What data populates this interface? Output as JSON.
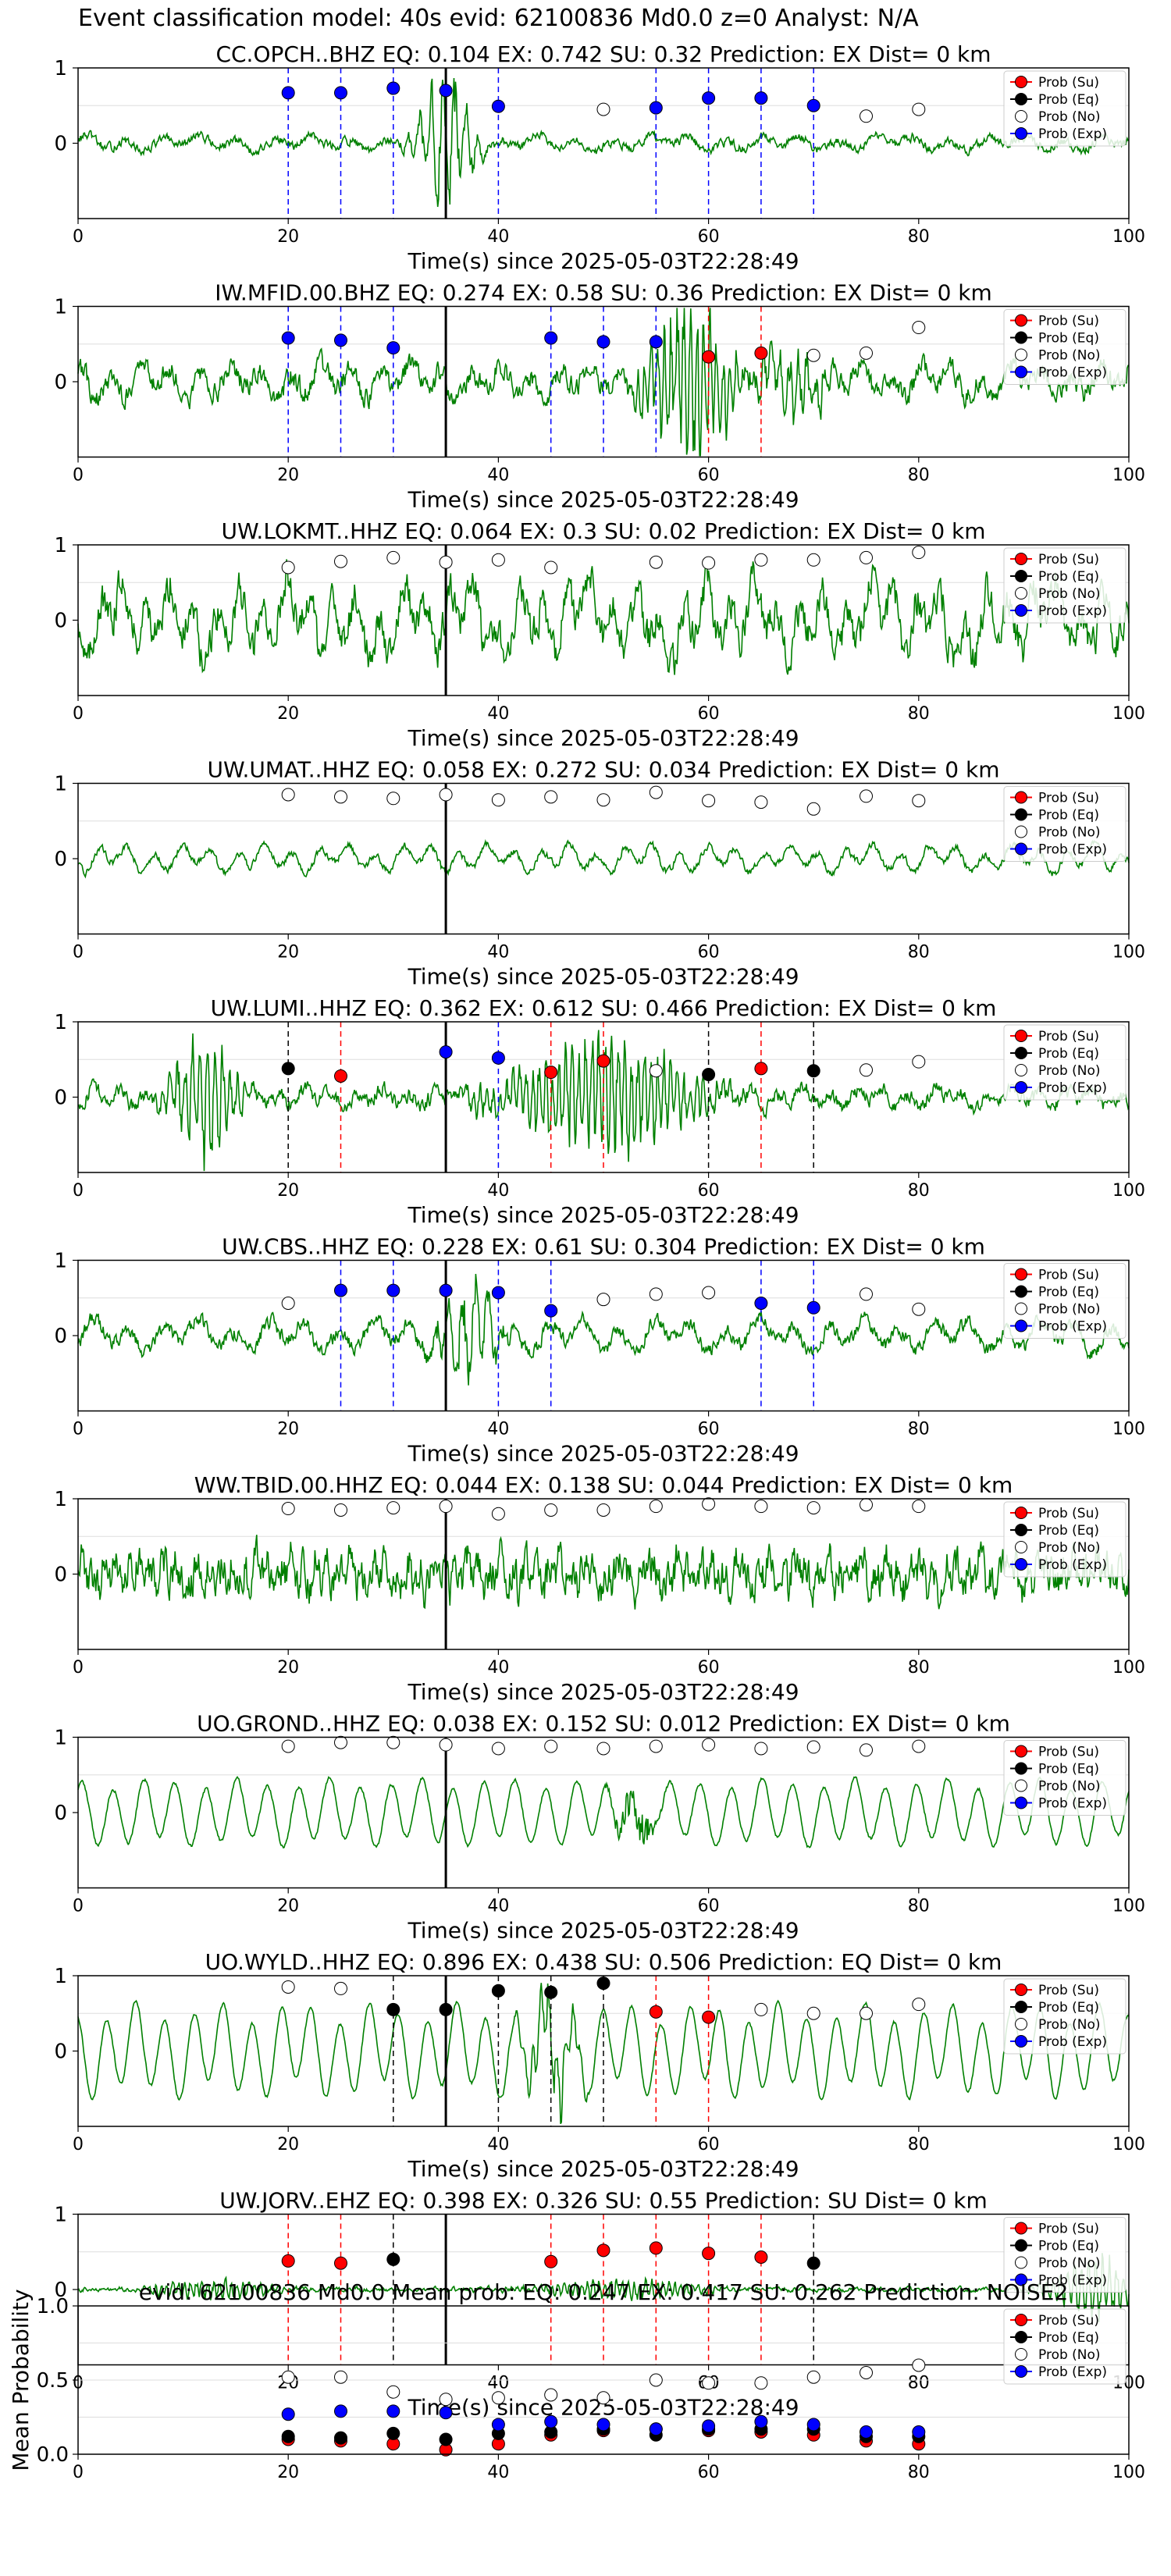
{
  "suptitle": "Event classification model: 40s evid: 62100836 Md0.0 z=0 Analyst: N/A",
  "colors": {
    "waveform": "#008000",
    "su": "#ff0000",
    "eq": "#000000",
    "no": "#ffffff",
    "exp": "#0000ff",
    "grid": "#dddddd"
  },
  "legend": [
    "Prob (Su)",
    "Prob (Eq)",
    "Prob (No)",
    "Prob (Exp)"
  ],
  "xlabel": "Time(s) since 2025-05-03T22:28:49",
  "x_ticks": [
    "0",
    "20",
    "40",
    "60",
    "80",
    "100"
  ],
  "y_ticks": [
    "1",
    "0"
  ],
  "chart_data": [
    {
      "type": "line",
      "title": "CC.OPCH..BHZ   EQ: 0.104   EX: 0.742   SU: 0.32    Prediction: EX    Dist= 0 km",
      "xlabel": "Time(s) since 2025-05-03T22:28:49",
      "xlim": [
        0,
        100
      ],
      "ylim": [
        -1,
        1
      ],
      "origin_time": 35,
      "points": [
        {
          "x": 20,
          "y": 0.67,
          "cls": "exp"
        },
        {
          "x": 25,
          "y": 0.67,
          "cls": "exp"
        },
        {
          "x": 30,
          "y": 0.73,
          "cls": "exp"
        },
        {
          "x": 35,
          "y": 0.7,
          "cls": "exp"
        },
        {
          "x": 40,
          "y": 0.49,
          "cls": "exp"
        },
        {
          "x": 50,
          "y": 0.45,
          "cls": "no"
        },
        {
          "x": 55,
          "y": 0.47,
          "cls": "exp"
        },
        {
          "x": 60,
          "y": 0.6,
          "cls": "exp"
        },
        {
          "x": 65,
          "y": 0.6,
          "cls": "exp"
        },
        {
          "x": 70,
          "y": 0.5,
          "cls": "exp"
        },
        {
          "x": 75,
          "y": 0.36,
          "cls": "no"
        },
        {
          "x": 80,
          "y": 0.45,
          "cls": "no"
        }
      ]
    },
    {
      "type": "line",
      "title": "IW.MFID.00.BHZ   EQ: 0.274  EX: 0.58  SU: 0.36   Prediction: EX    Dist= 0 km",
      "xlabel": "Time(s) since 2025-05-03T22:28:49",
      "xlim": [
        0,
        100
      ],
      "ylim": [
        -1,
        1
      ],
      "origin_time": 35,
      "points": [
        {
          "x": 20,
          "y": 0.58,
          "cls": "exp"
        },
        {
          "x": 25,
          "y": 0.55,
          "cls": "exp"
        },
        {
          "x": 30,
          "y": 0.45,
          "cls": "exp"
        },
        {
          "x": 45,
          "y": 0.58,
          "cls": "exp"
        },
        {
          "x": 50,
          "y": 0.53,
          "cls": "exp"
        },
        {
          "x": 55,
          "y": 0.53,
          "cls": "exp"
        },
        {
          "x": 60,
          "y": 0.33,
          "cls": "su"
        },
        {
          "x": 65,
          "y": 0.38,
          "cls": "su"
        },
        {
          "x": 70,
          "y": 0.35,
          "cls": "no"
        },
        {
          "x": 75,
          "y": 0.38,
          "cls": "no"
        },
        {
          "x": 80,
          "y": 0.72,
          "cls": "no"
        }
      ]
    },
    {
      "type": "line",
      "title": "UW.LOKMT..HHZ   EQ: 0.064  EX: 0.3  SU: 0.02   Prediction: EX    Dist= 0 km",
      "xlabel": "Time(s) since 2025-05-03T22:28:49",
      "xlim": [
        0,
        100
      ],
      "ylim": [
        -1,
        1
      ],
      "origin_time": 35,
      "points": [
        {
          "x": 20,
          "y": 0.7,
          "cls": "no"
        },
        {
          "x": 25,
          "y": 0.78,
          "cls": "no"
        },
        {
          "x": 30,
          "y": 0.83,
          "cls": "no"
        },
        {
          "x": 35,
          "y": 0.77,
          "cls": "no"
        },
        {
          "x": 40,
          "y": 0.8,
          "cls": "no"
        },
        {
          "x": 45,
          "y": 0.7,
          "cls": "no"
        },
        {
          "x": 55,
          "y": 0.77,
          "cls": "no"
        },
        {
          "x": 60,
          "y": 0.76,
          "cls": "no"
        },
        {
          "x": 65,
          "y": 0.8,
          "cls": "no"
        },
        {
          "x": 70,
          "y": 0.8,
          "cls": "no"
        },
        {
          "x": 75,
          "y": 0.83,
          "cls": "no"
        },
        {
          "x": 80,
          "y": 0.9,
          "cls": "no"
        }
      ]
    },
    {
      "type": "line",
      "title": "UW.UMAT..HHZ   EQ: 0.058  EX: 0.272  SU: 0.034   Prediction: EX    Dist= 0 km",
      "xlabel": "Time(s) since 2025-05-03T22:28:49",
      "xlim": [
        0,
        100
      ],
      "ylim": [
        -1,
        1
      ],
      "origin_time": 35,
      "points": [
        {
          "x": 20,
          "y": 0.85,
          "cls": "no"
        },
        {
          "x": 25,
          "y": 0.82,
          "cls": "no"
        },
        {
          "x": 30,
          "y": 0.8,
          "cls": "no"
        },
        {
          "x": 35,
          "y": 0.85,
          "cls": "no"
        },
        {
          "x": 40,
          "y": 0.78,
          "cls": "no"
        },
        {
          "x": 45,
          "y": 0.82,
          "cls": "no"
        },
        {
          "x": 50,
          "y": 0.78,
          "cls": "no"
        },
        {
          "x": 55,
          "y": 0.88,
          "cls": "no"
        },
        {
          "x": 60,
          "y": 0.77,
          "cls": "no"
        },
        {
          "x": 65,
          "y": 0.75,
          "cls": "no"
        },
        {
          "x": 70,
          "y": 0.66,
          "cls": "no"
        },
        {
          "x": 75,
          "y": 0.83,
          "cls": "no"
        },
        {
          "x": 80,
          "y": 0.77,
          "cls": "no"
        }
      ]
    },
    {
      "type": "line",
      "title": "UW.LUMI..HHZ   EQ: 0.362  EX: 0.612  SU: 0.466   Prediction: EX    Dist= 0 km",
      "xlabel": "Time(s) since 2025-05-03T22:28:49",
      "xlim": [
        0,
        100
      ],
      "ylim": [
        -1,
        1
      ],
      "origin_time": 35,
      "points": [
        {
          "x": 20,
          "y": 0.38,
          "cls": "eq"
        },
        {
          "x": 25,
          "y": 0.28,
          "cls": "su"
        },
        {
          "x": 35,
          "y": 0.6,
          "cls": "exp"
        },
        {
          "x": 40,
          "y": 0.52,
          "cls": "exp"
        },
        {
          "x": 45,
          "y": 0.33,
          "cls": "su"
        },
        {
          "x": 50,
          "y": 0.48,
          "cls": "su"
        },
        {
          "x": 55,
          "y": 0.35,
          "cls": "no"
        },
        {
          "x": 60,
          "y": 0.3,
          "cls": "eq"
        },
        {
          "x": 65,
          "y": 0.38,
          "cls": "su"
        },
        {
          "x": 70,
          "y": 0.35,
          "cls": "eq"
        },
        {
          "x": 75,
          "y": 0.36,
          "cls": "no"
        },
        {
          "x": 80,
          "y": 0.47,
          "cls": "no"
        }
      ]
    },
    {
      "type": "line",
      "title": "UW.CBS..HHZ   EQ: 0.228  EX: 0.61  SU: 0.304   Prediction: EX    Dist= 0 km",
      "xlabel": "Time(s) since 2025-05-03T22:28:49",
      "xlim": [
        0,
        100
      ],
      "ylim": [
        -1,
        1
      ],
      "origin_time": 35,
      "points": [
        {
          "x": 20,
          "y": 0.43,
          "cls": "no"
        },
        {
          "x": 25,
          "y": 0.6,
          "cls": "exp"
        },
        {
          "x": 30,
          "y": 0.6,
          "cls": "exp"
        },
        {
          "x": 35,
          "y": 0.6,
          "cls": "exp"
        },
        {
          "x": 40,
          "y": 0.57,
          "cls": "exp"
        },
        {
          "x": 45,
          "y": 0.33,
          "cls": "exp"
        },
        {
          "x": 50,
          "y": 0.48,
          "cls": "no"
        },
        {
          "x": 55,
          "y": 0.55,
          "cls": "no"
        },
        {
          "x": 60,
          "y": 0.57,
          "cls": "no"
        },
        {
          "x": 65,
          "y": 0.43,
          "cls": "exp"
        },
        {
          "x": 70,
          "y": 0.37,
          "cls": "exp"
        },
        {
          "x": 75,
          "y": 0.55,
          "cls": "no"
        },
        {
          "x": 80,
          "y": 0.35,
          "cls": "no"
        }
      ]
    },
    {
      "type": "line",
      "title": "WW.TBID.00.HHZ   EQ: 0.044  EX: 0.138  SU: 0.044   Prediction: EX    Dist= 0 km",
      "xlabel": "Time(s) since 2025-05-03T22:28:49",
      "xlim": [
        0,
        100
      ],
      "ylim": [
        -1,
        1
      ],
      "origin_time": 35,
      "points": [
        {
          "x": 20,
          "y": 0.87,
          "cls": "no"
        },
        {
          "x": 25,
          "y": 0.85,
          "cls": "no"
        },
        {
          "x": 30,
          "y": 0.88,
          "cls": "no"
        },
        {
          "x": 35,
          "y": 0.9,
          "cls": "no"
        },
        {
          "x": 40,
          "y": 0.8,
          "cls": "no"
        },
        {
          "x": 45,
          "y": 0.85,
          "cls": "no"
        },
        {
          "x": 50,
          "y": 0.85,
          "cls": "no"
        },
        {
          "x": 55,
          "y": 0.9,
          "cls": "no"
        },
        {
          "x": 60,
          "y": 0.93,
          "cls": "no"
        },
        {
          "x": 65,
          "y": 0.9,
          "cls": "no"
        },
        {
          "x": 70,
          "y": 0.88,
          "cls": "no"
        },
        {
          "x": 75,
          "y": 0.92,
          "cls": "no"
        },
        {
          "x": 80,
          "y": 0.9,
          "cls": "no"
        }
      ]
    },
    {
      "type": "line",
      "title": "UO.GROND..HHZ   EQ: 0.038  EX: 0.152  SU: 0.012   Prediction: EX    Dist= 0 km",
      "xlabel": "Time(s) since 2025-05-03T22:28:49",
      "xlim": [
        0,
        100
      ],
      "ylim": [
        -1,
        1
      ],
      "origin_time": 35,
      "points": [
        {
          "x": 20,
          "y": 0.88,
          "cls": "no"
        },
        {
          "x": 25,
          "y": 0.93,
          "cls": "no"
        },
        {
          "x": 30,
          "y": 0.93,
          "cls": "no"
        },
        {
          "x": 35,
          "y": 0.9,
          "cls": "no"
        },
        {
          "x": 40,
          "y": 0.85,
          "cls": "no"
        },
        {
          "x": 45,
          "y": 0.88,
          "cls": "no"
        },
        {
          "x": 50,
          "y": 0.85,
          "cls": "no"
        },
        {
          "x": 55,
          "y": 0.88,
          "cls": "no"
        },
        {
          "x": 60,
          "y": 0.9,
          "cls": "no"
        },
        {
          "x": 65,
          "y": 0.85,
          "cls": "no"
        },
        {
          "x": 70,
          "y": 0.87,
          "cls": "no"
        },
        {
          "x": 75,
          "y": 0.83,
          "cls": "no"
        },
        {
          "x": 80,
          "y": 0.88,
          "cls": "no"
        }
      ]
    },
    {
      "type": "line",
      "title": "UO.WYLD..HHZ   EQ: 0.896  EX: 0.438  SU: 0.506   Prediction: EQ    Dist= 0 km",
      "xlabel": "Time(s) since 2025-05-03T22:28:49",
      "xlim": [
        0,
        100
      ],
      "ylim": [
        -1,
        1
      ],
      "origin_time": 35,
      "points": [
        {
          "x": 20,
          "y": 0.85,
          "cls": "no"
        },
        {
          "x": 25,
          "y": 0.83,
          "cls": "no"
        },
        {
          "x": 30,
          "y": 0.55,
          "cls": "eq"
        },
        {
          "x": 35,
          "y": 0.55,
          "cls": "eq"
        },
        {
          "x": 40,
          "y": 0.8,
          "cls": "eq"
        },
        {
          "x": 45,
          "y": 0.78,
          "cls": "eq"
        },
        {
          "x": 50,
          "y": 0.9,
          "cls": "eq"
        },
        {
          "x": 55,
          "y": 0.52,
          "cls": "su"
        },
        {
          "x": 60,
          "y": 0.45,
          "cls": "su"
        },
        {
          "x": 65,
          "y": 0.55,
          "cls": "no"
        },
        {
          "x": 70,
          "y": 0.5,
          "cls": "no"
        },
        {
          "x": 75,
          "y": 0.5,
          "cls": "no"
        },
        {
          "x": 80,
          "y": 0.62,
          "cls": "no"
        }
      ]
    },
    {
      "type": "line",
      "title": "UW.JORV..EHZ   EQ: 0.398  EX: 0.326  SU: 0.55   Prediction: SU    Dist= 0 km",
      "xlabel": "Time(s) since 2025-05-03T22:28:49",
      "xlim": [
        0,
        100
      ],
      "ylim": [
        -1,
        1
      ],
      "origin_time": 35,
      "points": [
        {
          "x": 20,
          "y": 0.38,
          "cls": "su"
        },
        {
          "x": 25,
          "y": 0.35,
          "cls": "su"
        },
        {
          "x": 30,
          "y": 0.4,
          "cls": "eq"
        },
        {
          "x": 45,
          "y": 0.37,
          "cls": "su"
        },
        {
          "x": 50,
          "y": 0.52,
          "cls": "su"
        },
        {
          "x": 55,
          "y": 0.55,
          "cls": "su"
        },
        {
          "x": 60,
          "y": 0.48,
          "cls": "su"
        },
        {
          "x": 65,
          "y": 0.43,
          "cls": "su"
        },
        {
          "x": 70,
          "y": 0.35,
          "cls": "eq"
        }
      ]
    },
    {
      "type": "scatter",
      "title": "evid: 62100836  Md0.0   Mean prob:   EQ: 0.247  EX: 0.417  SU: 0.262   Prediction: NOISE2",
      "ylabel": "Mean Probability",
      "xlim": [
        0,
        100
      ],
      "ylim": [
        0,
        1
      ],
      "y_ticks": [
        "1.0",
        "0.5",
        "0.0"
      ],
      "x": [
        20,
        25,
        30,
        35,
        40,
        45,
        50,
        55,
        60,
        65,
        70,
        75,
        80
      ],
      "series": [
        {
          "name": "Prob (Su)",
          "values": [
            0.1,
            0.09,
            0.07,
            0.03,
            0.07,
            0.13,
            0.16,
            0.17,
            0.16,
            0.15,
            0.13,
            0.09,
            0.07
          ]
        },
        {
          "name": "Prob (Eq)",
          "values": [
            0.12,
            0.11,
            0.14,
            0.1,
            0.14,
            0.15,
            0.17,
            0.13,
            0.17,
            0.17,
            0.17,
            0.12,
            0.12
          ]
        },
        {
          "name": "Prob (No)",
          "values": [
            0.52,
            0.52,
            0.42,
            0.37,
            0.38,
            0.4,
            0.38,
            0.5,
            0.48,
            0.48,
            0.52,
            0.55,
            0.6
          ]
        },
        {
          "name": "Prob (Exp)",
          "values": [
            0.27,
            0.29,
            0.29,
            0.28,
            0.2,
            0.22,
            0.2,
            0.17,
            0.19,
            0.22,
            0.2,
            0.15,
            0.15
          ]
        }
      ]
    }
  ]
}
